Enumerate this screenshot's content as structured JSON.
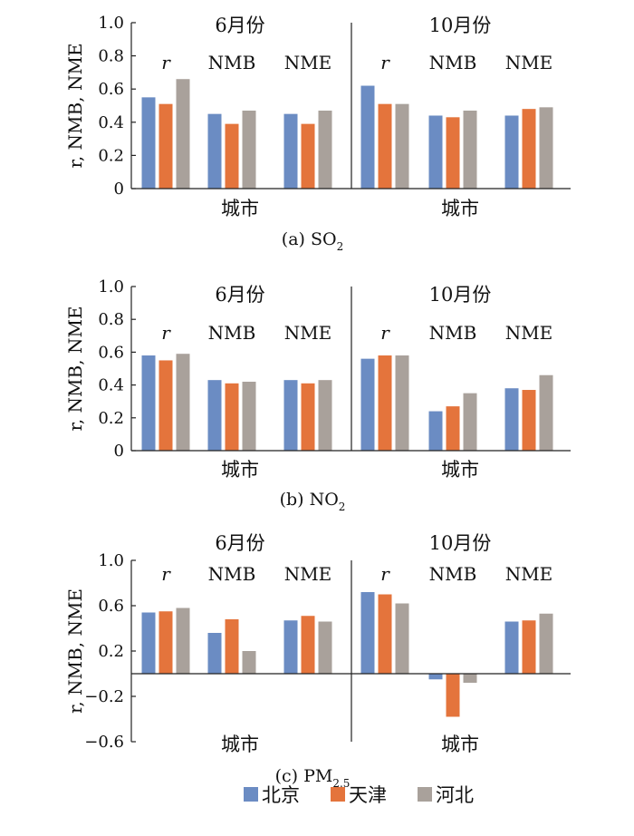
{
  "legend": {
    "items": [
      {
        "name": "北京",
        "color": "#6b8cc3"
      },
      {
        "name": "天津",
        "color": "#e4743c"
      },
      {
        "name": "河北",
        "color": "#a9a19b"
      }
    ]
  },
  "chart_data": [
    {
      "type": "bar",
      "caption": "(a) SO",
      "caption_sub": "2",
      "xlabel": "城市",
      "ylabel": "r, NMB, NME",
      "ylim": [
        0,
        1.0
      ],
      "yticks": [
        0,
        0.2,
        0.4,
        0.6,
        0.8,
        1.0
      ],
      "ytick_labels": [
        "0",
        "0.2",
        "0.4",
        "0.6",
        "0.8",
        "1.0"
      ],
      "panels": [
        {
          "month": "6月份",
          "groups": [
            {
              "label": "r",
              "values": [
                0.55,
                0.51,
                0.66
              ]
            },
            {
              "label": "NMB",
              "values": [
                0.45,
                0.39,
                0.47
              ]
            },
            {
              "label": "NME",
              "values": [
                0.45,
                0.39,
                0.47
              ]
            }
          ]
        },
        {
          "month": "10月份",
          "groups": [
            {
              "label": "r",
              "values": [
                0.62,
                0.51,
                0.51
              ]
            },
            {
              "label": "NMB",
              "values": [
                0.44,
                0.43,
                0.47
              ]
            },
            {
              "label": "NME",
              "values": [
                0.44,
                0.48,
                0.49
              ]
            }
          ]
        }
      ]
    },
    {
      "type": "bar",
      "caption": "(b) NO",
      "caption_sub": "2",
      "xlabel": "城市",
      "ylabel": "r, NMB, NME",
      "ylim": [
        0,
        1.0
      ],
      "yticks": [
        0,
        0.2,
        0.4,
        0.6,
        0.8,
        1.0
      ],
      "ytick_labels": [
        "0",
        "0.2",
        "0.4",
        "0.6",
        "0.8",
        "1.0"
      ],
      "panels": [
        {
          "month": "6月份",
          "groups": [
            {
              "label": "r",
              "values": [
                0.58,
                0.55,
                0.59
              ]
            },
            {
              "label": "NMB",
              "values": [
                0.43,
                0.41,
                0.42
              ]
            },
            {
              "label": "NME",
              "values": [
                0.43,
                0.41,
                0.43
              ]
            }
          ]
        },
        {
          "month": "10月份",
          "groups": [
            {
              "label": "r",
              "values": [
                0.56,
                0.58,
                0.58
              ]
            },
            {
              "label": "NMB",
              "values": [
                0.24,
                0.27,
                0.35
              ]
            },
            {
              "label": "NME",
              "values": [
                0.38,
                0.37,
                0.46
              ]
            }
          ]
        }
      ]
    },
    {
      "type": "bar",
      "caption": "(c) PM",
      "caption_sub": "2.5",
      "xlabel": "城市",
      "ylabel": "r, NMB, NME",
      "ylim": [
        -0.6,
        1.0
      ],
      "yticks": [
        -0.6,
        -0.2,
        0.2,
        0.6,
        1.0
      ],
      "ytick_labels": [
        "−0.6",
        "−0.2",
        "0.2",
        "0.6",
        "1.0"
      ],
      "panels": [
        {
          "month": "6月份",
          "groups": [
            {
              "label": "r",
              "values": [
                0.54,
                0.55,
                0.58
              ]
            },
            {
              "label": "NMB",
              "values": [
                0.36,
                0.48,
                0.2
              ]
            },
            {
              "label": "NME",
              "values": [
                0.47,
                0.51,
                0.46
              ]
            }
          ]
        },
        {
          "month": "10月份",
          "groups": [
            {
              "label": "r",
              "values": [
                0.72,
                0.7,
                0.62
              ]
            },
            {
              "label": "NMB",
              "values": [
                -0.05,
                -0.38,
                -0.08
              ]
            },
            {
              "label": "NME",
              "values": [
                0.46,
                0.47,
                0.53
              ]
            }
          ]
        }
      ]
    }
  ]
}
